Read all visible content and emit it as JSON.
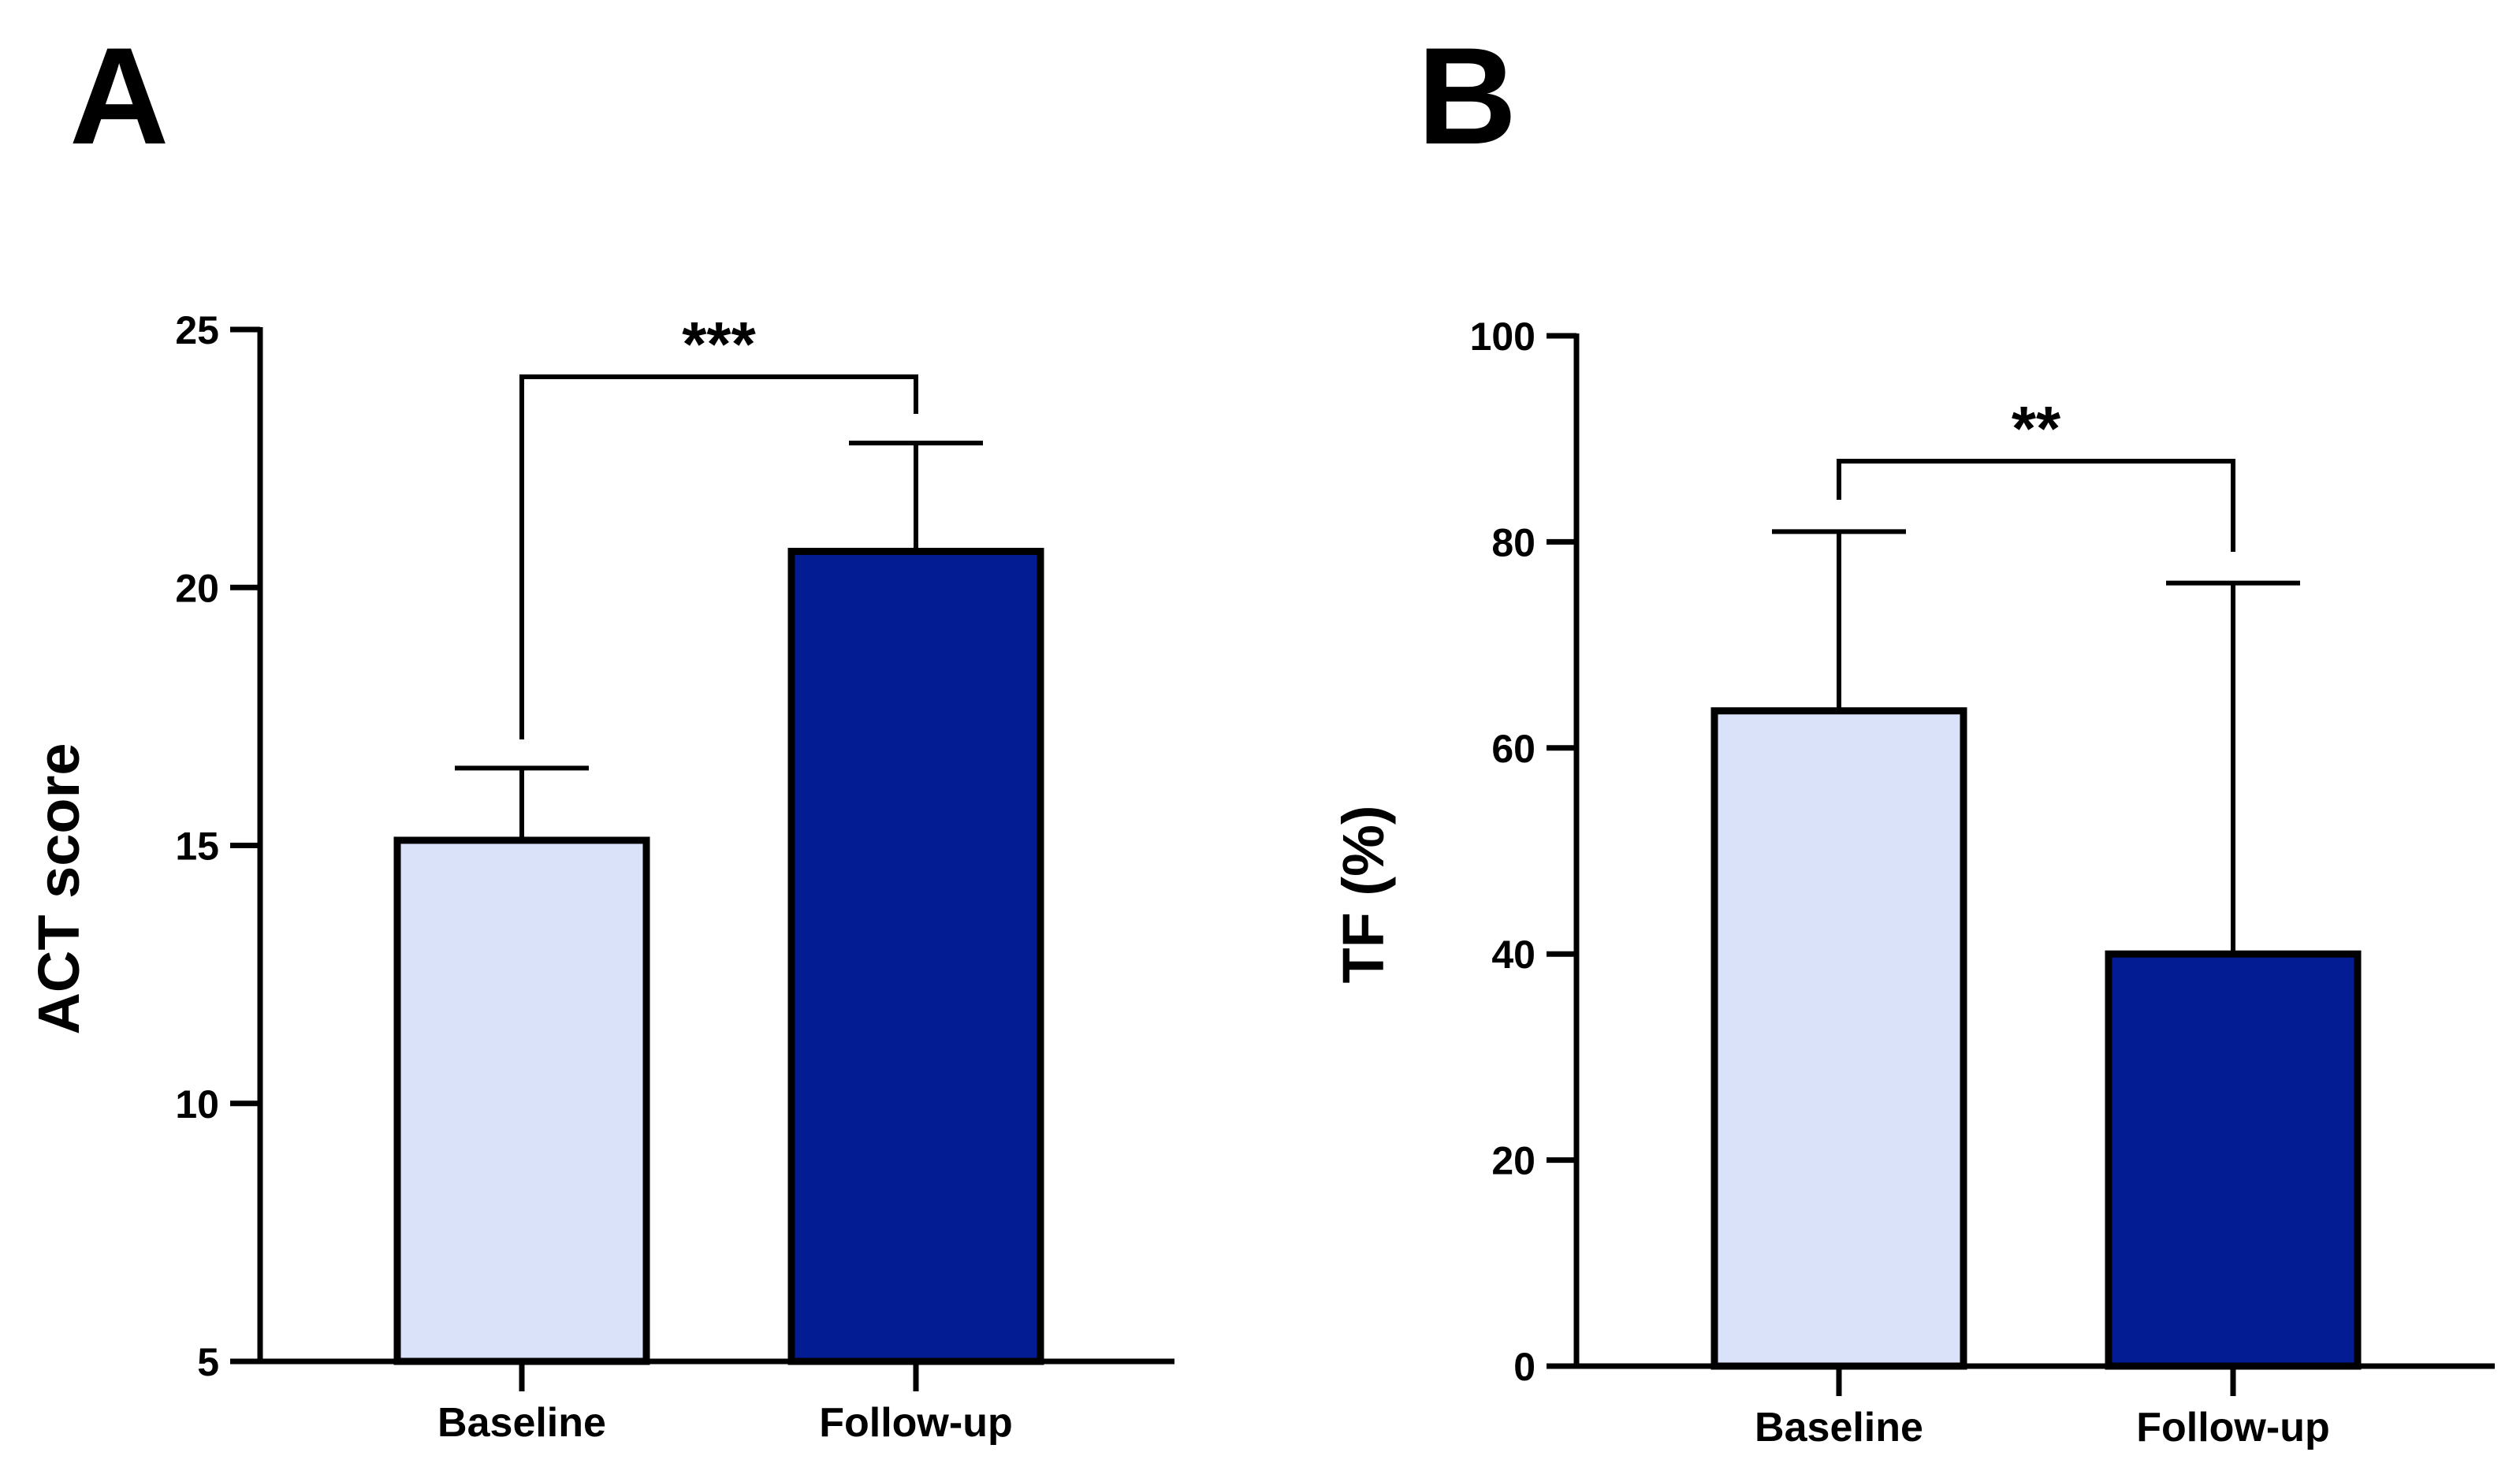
{
  "colors": {
    "baseline": "#d9e2f8",
    "followup": "#031b93",
    "stroke": "#000000"
  },
  "chart_data": [
    {
      "type": "bar",
      "panel": "A",
      "categories": [
        "Baseline",
        "Follow-up"
      ],
      "values": [
        15.1,
        20.7
      ],
      "error_upper": [
        16.5,
        22.8
      ],
      "ylabel": "ACT score",
      "xlabel": "",
      "ylim": [
        5,
        25
      ],
      "yticks": [
        5,
        10,
        15,
        20,
        25
      ],
      "grid": false,
      "significance": {
        "label": "***",
        "between": [
          0,
          1
        ]
      }
    },
    {
      "type": "bar",
      "panel": "B",
      "categories": [
        "Baseline",
        "Follow-up"
      ],
      "values": [
        63.6,
        40.0
      ],
      "error_upper": [
        81.0,
        76.0
      ],
      "ylabel": "TF (%)",
      "xlabel": "",
      "ylim": [
        0,
        100
      ],
      "yticks": [
        0,
        20,
        40,
        60,
        80,
        100
      ],
      "grid": false,
      "significance": {
        "label": "**",
        "between": [
          0,
          1
        ]
      }
    }
  ]
}
